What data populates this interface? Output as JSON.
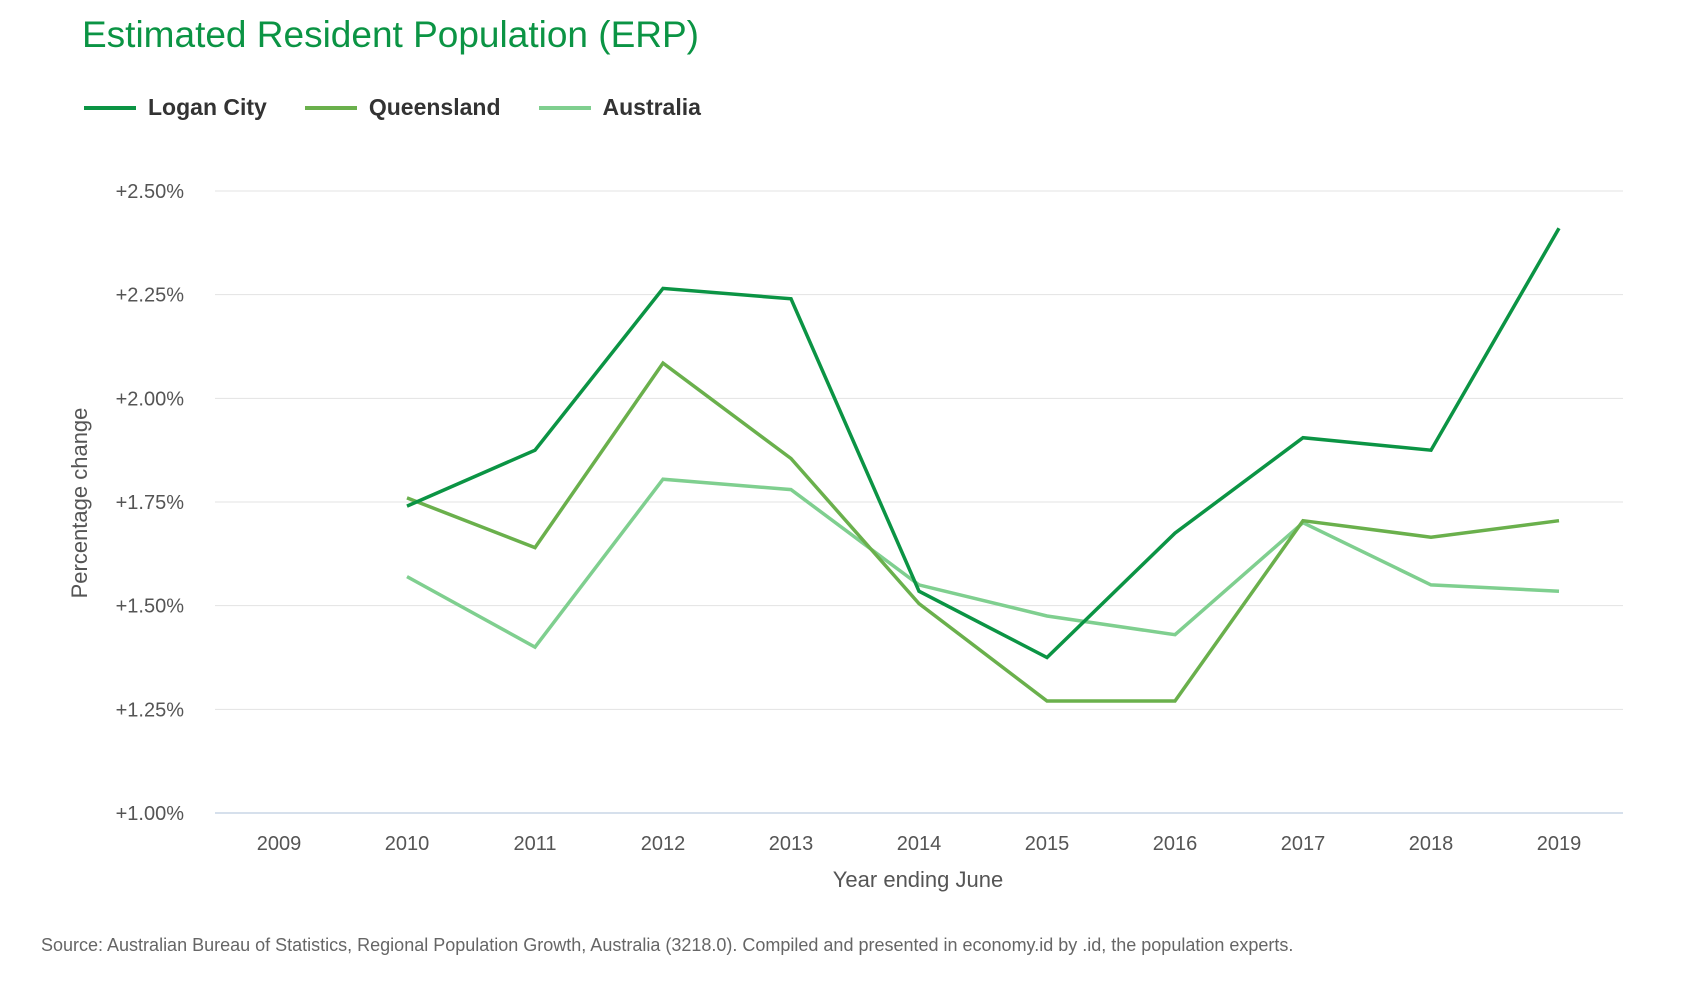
{
  "chart_data": {
    "type": "line",
    "title": "Estimated Resident Population (ERP)",
    "xlabel": "Year ending June",
    "ylabel": "Percentage change",
    "categories": [
      "2009",
      "2010",
      "2011",
      "2012",
      "2013",
      "2014",
      "2015",
      "2016",
      "2017",
      "2018",
      "2019"
    ],
    "ylim": [
      1.0,
      2.5
    ],
    "yticks": [
      1.0,
      1.25,
      1.5,
      1.75,
      2.0,
      2.25,
      2.5
    ],
    "ytick_labels": [
      "+1.00%",
      "+1.25%",
      "+1.50%",
      "+1.75%",
      "+2.00%",
      "+2.25%",
      "+2.50%"
    ],
    "grid": true,
    "legend_position": "top-left",
    "series": [
      {
        "name": "Logan City",
        "color": "#0b9444",
        "values": [
          null,
          1.74,
          1.875,
          2.265,
          2.24,
          1.535,
          1.375,
          1.675,
          1.905,
          1.875,
          2.41
        ]
      },
      {
        "name": "Queensland",
        "color": "#6ab04c",
        "values": [
          null,
          1.76,
          1.64,
          2.085,
          1.855,
          1.505,
          1.27,
          1.27,
          1.705,
          1.665,
          1.705
        ]
      },
      {
        "name": "Australia",
        "color": "#7fcf8f",
        "values": [
          null,
          1.57,
          1.4,
          1.805,
          1.78,
          1.55,
          1.475,
          1.43,
          1.7,
          1.55,
          1.535
        ]
      }
    ]
  },
  "source_note": "Source: Australian Bureau of Statistics, Regional Population Growth, Australia (3218.0). Compiled and presented in economy.id by .id, the population experts."
}
